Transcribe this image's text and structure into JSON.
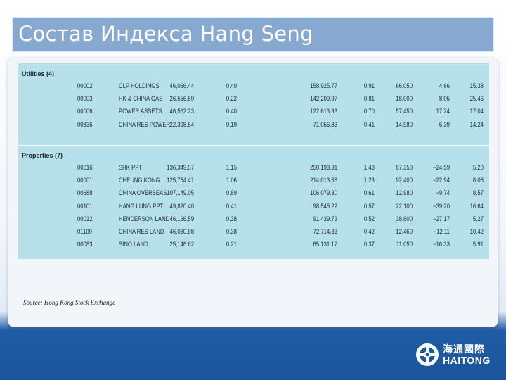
{
  "title": "Состав Индекса Hang Seng",
  "source": "Source: Hong Kong Stock Exchange",
  "logo": {
    "chinese": "海通國際",
    "english": "HAITONG"
  },
  "sections": [
    {
      "label": "Utilities (4)",
      "rows": [
        [
          "00002",
          "CLP HOLDINGS",
          "46,066.44",
          "0.40",
          "158,925.77",
          "0.91",
          "66.050",
          "4.66",
          "15.38"
        ],
        [
          "00003",
          "HK & CHINA GAS",
          "26,556.59",
          "0.22",
          "142,209.97",
          "0.81",
          "18.000",
          "8.05",
          "25.46"
        ],
        [
          "00006",
          "POWER ASSETS",
          "46,562.23",
          "0.40",
          "122,613.33",
          "0.70",
          "57.450",
          "17.24",
          "17.04"
        ],
        [
          "00836",
          "CHINA RES POWER",
          "22,398.54",
          "0.19",
          "71,056.83",
          "0.41",
          "14.980",
          "6.39",
          "14.24"
        ]
      ]
    },
    {
      "label": "Properties (7)",
      "rows": [
        [
          "00016",
          "SHK PPT",
          "136,349.57",
          "1.15",
          "250,193.31",
          "1.43",
          "87.350",
          "−24.59",
          "5.20"
        ],
        [
          "00001",
          "CHEUNG KONG",
          "125,754.41",
          "1.06",
          "214,013.58",
          "1.23",
          "92.400",
          "−22.94",
          "8.08"
        ],
        [
          "00688",
          "CHINA OVERSEAS",
          "107,149.05",
          "0.89",
          "106,079.30",
          "0.61",
          "12.980",
          "−9.74",
          "8.57"
        ],
        [
          "00101",
          "HANG LUNG PPT",
          "49,820.40",
          "0.41",
          "98,545.22",
          "0.57",
          "22.100",
          "−39.20",
          "16.64"
        ],
        [
          "00012",
          "HENDERSON LAND",
          "46,166.59",
          "0.38",
          "91,439.73",
          "0.52",
          "38.600",
          "−27.17",
          "5.27"
        ],
        [
          "01109",
          "CHINA RES LAND",
          "46,030.98",
          "0.38",
          "72,714.33",
          "0.42",
          "12.460",
          "−12.11",
          "10.42"
        ],
        [
          "00083",
          "SINO LAND",
          "25,146.62",
          "0.21",
          "65,131.17",
          "0.37",
          "11.050",
          "−16.33",
          "5.91"
        ]
      ]
    }
  ]
}
